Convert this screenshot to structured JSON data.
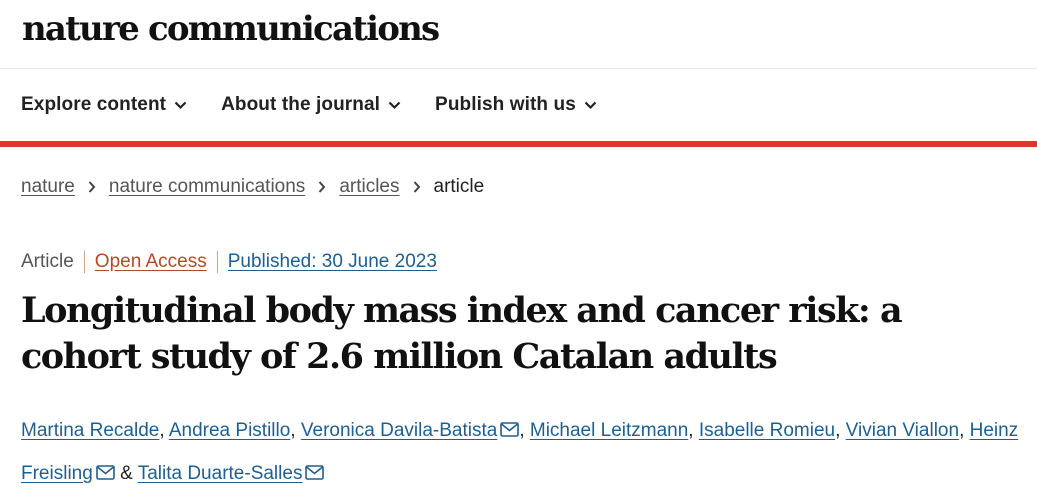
{
  "header": {
    "logo": "nature communications"
  },
  "nav": {
    "items": [
      {
        "label": "Explore content"
      },
      {
        "label": "About the journal"
      },
      {
        "label": "Publish with us"
      }
    ]
  },
  "breadcrumb": {
    "items": [
      "nature",
      "nature communications",
      "articles"
    ],
    "current": "article"
  },
  "article": {
    "type": "Article",
    "access": "Open Access",
    "published": "Published: 30 June 2023",
    "title": "Longitudinal body mass index and cancer risk: a cohort study of 2.6 million Catalan adults",
    "authors": [
      {
        "name": "Martina Recalde",
        "sep": ", "
      },
      {
        "name": "Andrea Pistillo",
        "sep": ", "
      },
      {
        "name": "Veronica Davila-Batista",
        "sep": ", ",
        "icon": "mail-icon"
      },
      {
        "name": "Michael Leitzmann",
        "sep": ", "
      },
      {
        "name": "Isabelle Romieu",
        "sep": ", "
      },
      {
        "name": "Vivian Viallon",
        "sep": ", "
      },
      {
        "name": "Heinz Freisling",
        "sep": " & ",
        "icon": "mail-icon"
      },
      {
        "name": "Talita Duarte-Salles",
        "sep": "",
        "icon": "mail-icon"
      }
    ]
  },
  "colors": {
    "accent_bar": "#e0362c",
    "open_access": "#b24a2a",
    "link": "#1f5f8f"
  }
}
